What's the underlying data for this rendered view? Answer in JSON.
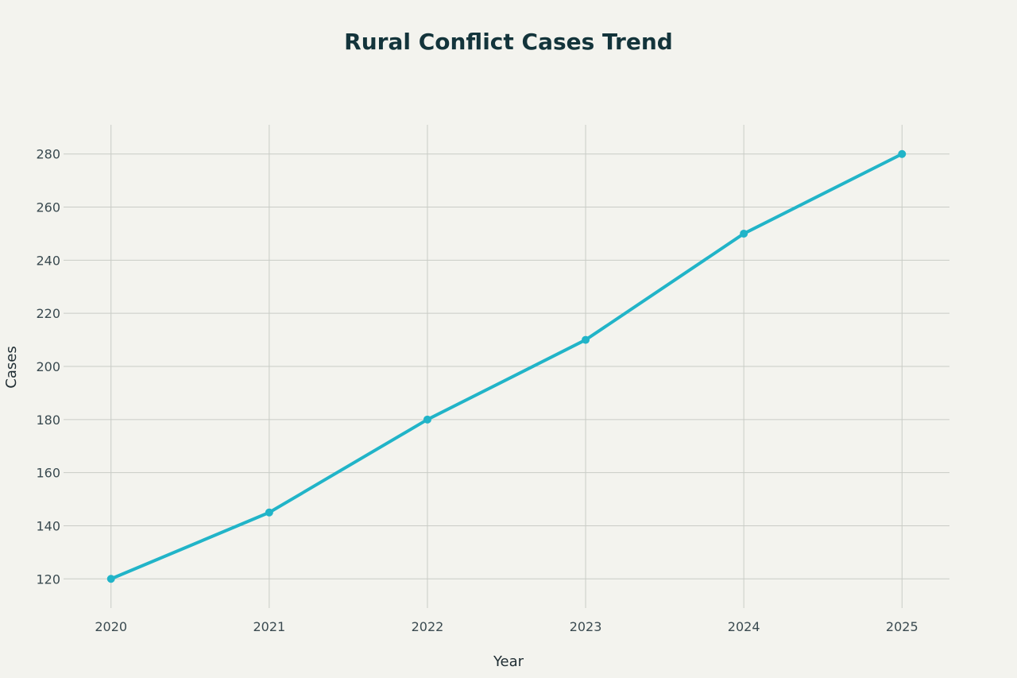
{
  "chart_data": {
    "type": "line",
    "title": "Rural Conflict Cases Trend",
    "xlabel": "Year",
    "ylabel": "Cases",
    "x": [
      2020,
      2021,
      2022,
      2023,
      2024,
      2025
    ],
    "x_tick_labels": [
      "2020",
      "2021",
      "2022",
      "2023",
      "2024",
      "2025"
    ],
    "y_ticks": [
      120,
      140,
      160,
      180,
      200,
      220,
      240,
      260,
      280
    ],
    "y_tick_labels": [
      "120",
      "140",
      "160",
      "180",
      "200",
      "220",
      "240",
      "260",
      "280"
    ],
    "ylim": [
      109,
      291
    ],
    "xlim": [
      2019.7,
      2025.3
    ],
    "grid": true,
    "legend": "none",
    "series": [
      {
        "values": [
          120,
          145,
          180,
          210,
          250,
          280
        ],
        "color": "#21b4c8"
      }
    ]
  }
}
